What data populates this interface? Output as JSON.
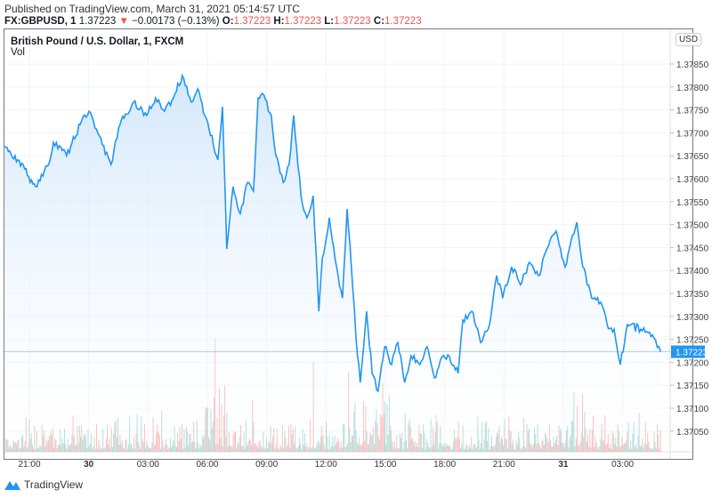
{
  "published": "Published on TradingView.com, March 31, 2021 05:14:57 UTC",
  "symbol_bar": {
    "symbol": "FX:GBPUSD, 1",
    "last": "1.37223",
    "arrow": "▼",
    "change": "−0.00173 (−0.13%)",
    "o_label": "O:",
    "o": "1.37223",
    "h_label": "H:",
    "h": "1.37223",
    "l_label": "L:",
    "l": "1.37223",
    "c_label": "C:",
    "c": "1.37223"
  },
  "footer": {
    "brand": "TradingView",
    "icon": "tradingview-logo-icon"
  },
  "chart_data": {
    "type": "area",
    "title": "British Pound / U.S. Dollar, 1, FXCM",
    "volume_label": "Vol",
    "currency": "USD",
    "last_price": 1.37223,
    "last_price_label": "1.37223",
    "ylim": [
      1.3701,
      1.3791
    ],
    "y_ticks": [
      "1.37850",
      "1.37800",
      "1.37750",
      "1.37700",
      "1.37650",
      "1.37600",
      "1.37550",
      "1.37500",
      "1.37450",
      "1.37400",
      "1.37350",
      "1.37300",
      "1.37250",
      "1.37200",
      "1.37150",
      "1.37100",
      "1.37050"
    ],
    "x_ticks": [
      {
        "label": "21:00",
        "time": "2021-03-29 21:00",
        "bold": false
      },
      {
        "label": "30",
        "time": "2021-03-30 00:00",
        "bold": true
      },
      {
        "label": "03:00",
        "time": "2021-03-30 03:00",
        "bold": false
      },
      {
        "label": "06:00",
        "time": "2021-03-30 06:00",
        "bold": false
      },
      {
        "label": "09:00",
        "time": "2021-03-30 09:00",
        "bold": false
      },
      {
        "label": "12:00",
        "time": "2021-03-30 12:00",
        "bold": false
      },
      {
        "label": "15:00",
        "time": "2021-03-30 15:00",
        "bold": false
      },
      {
        "label": "18:00",
        "time": "2021-03-30 18:00",
        "bold": false
      },
      {
        "label": "21:00",
        "time": "2021-03-30 21:00",
        "bold": false
      },
      {
        "label": "31",
        "time": "2021-03-31 00:00",
        "bold": true
      },
      {
        "label": "03:00",
        "time": "2021-03-31 03:00",
        "bold": false
      }
    ],
    "colors": {
      "line": "#2196f3",
      "area_top": "#cfe5fb",
      "up_volume": "#26a69a",
      "down_volume": "#ef5350",
      "price_label_bg": "#2196f3"
    },
    "grid": true,
    "series": [
      [
        "2021-03-29 19:44",
        1.3767
      ],
      [
        "2021-03-29 20:25",
        1.37641
      ],
      [
        "2021-03-29 21:19",
        1.37583
      ],
      [
        "2021-03-29 21:59",
        1.37631
      ],
      [
        "2021-03-29 22:13",
        1.37679
      ],
      [
        "2021-03-29 22:53",
        1.3765
      ],
      [
        "2021-03-29 23:34",
        1.37718
      ],
      [
        "2021-03-30 00:01",
        1.37747
      ],
      [
        "2021-03-30 00:28",
        1.37699
      ],
      [
        "2021-03-30 01:08",
        1.37631
      ],
      [
        "2021-03-30 01:35",
        1.37718
      ],
      [
        "2021-03-30 02:16",
        1.37767
      ],
      [
        "2021-03-30 02:56",
        1.37738
      ],
      [
        "2021-03-30 03:23",
        1.37776
      ],
      [
        "2021-03-30 03:50",
        1.37747
      ],
      [
        "2021-03-30 04:17",
        1.37776
      ],
      [
        "2021-03-30 04:44",
        1.37825
      ],
      [
        "2021-03-30 05:11",
        1.37767
      ],
      [
        "2021-03-30 05:31",
        1.37796
      ],
      [
        "2021-03-30 06:05",
        1.37709
      ],
      [
        "2021-03-30 06:32",
        1.37641
      ],
      [
        "2021-03-30 06:46",
        1.37757
      ],
      [
        "2021-03-30 06:59",
        1.37447
      ],
      [
        "2021-03-30 07:18",
        1.37583
      ],
      [
        "2021-03-30 07:40",
        1.37524
      ],
      [
        "2021-03-30 08:02",
        1.37592
      ],
      [
        "2021-03-30 08:20",
        1.37573
      ],
      [
        "2021-03-30 08:34",
        1.37776
      ],
      [
        "2021-03-30 08:47",
        1.37786
      ],
      [
        "2021-03-30 09:14",
        1.37738
      ],
      [
        "2021-03-30 09:28",
        1.3765
      ],
      [
        "2021-03-30 09:50",
        1.37592
      ],
      [
        "2021-03-30 10:08",
        1.37631
      ],
      [
        "2021-03-30 10:22",
        1.37738
      ],
      [
        "2021-03-30 10:44",
        1.37563
      ],
      [
        "2021-03-30 11:02",
        1.37515
      ],
      [
        "2021-03-30 11:21",
        1.37563
      ],
      [
        "2021-03-30 11:38",
        1.37311
      ],
      [
        "2021-03-30 11:49",
        1.37428
      ],
      [
        "2021-03-30 12:10",
        1.37515
      ],
      [
        "2021-03-30 12:32",
        1.37408
      ],
      [
        "2021-03-30 12:50",
        1.3734
      ],
      [
        "2021-03-30 13:04",
        1.37534
      ],
      [
        "2021-03-30 13:17",
        1.37408
      ],
      [
        "2021-03-30 13:31",
        1.37253
      ],
      [
        "2021-03-30 13:44",
        1.37156
      ],
      [
        "2021-03-30 14:03",
        1.37311
      ],
      [
        "2021-03-30 14:20",
        1.37176
      ],
      [
        "2021-03-30 14:38",
        1.37137
      ],
      [
        "2021-03-30 14:58",
        1.37234
      ],
      [
        "2021-03-30 15:19",
        1.37195
      ],
      [
        "2021-03-30 15:38",
        1.37243
      ],
      [
        "2021-03-30 15:59",
        1.37156
      ],
      [
        "2021-03-30 16:18",
        1.37214
      ],
      [
        "2021-03-30 16:45",
        1.37195
      ],
      [
        "2021-03-30 17:07",
        1.37234
      ],
      [
        "2021-03-30 17:29",
        1.37166
      ],
      [
        "2021-03-30 17:47",
        1.37205
      ],
      [
        "2021-03-30 18:14",
        1.37214
      ],
      [
        "2021-03-30 18:41",
        1.37176
      ],
      [
        "2021-03-30 18:55",
        1.37292
      ],
      [
        "2021-03-30 19:22",
        1.37311
      ],
      [
        "2021-03-30 19:49",
        1.37243
      ],
      [
        "2021-03-30 20:16",
        1.37282
      ],
      [
        "2021-03-30 20:38",
        1.37389
      ],
      [
        "2021-03-30 20:56",
        1.3734
      ],
      [
        "2021-03-30 21:23",
        1.37408
      ],
      [
        "2021-03-30 21:50",
        1.37369
      ],
      [
        "2021-03-30 22:17",
        1.37418
      ],
      [
        "2021-03-30 22:44",
        1.37389
      ],
      [
        "2021-03-30 23:20",
        1.37466
      ],
      [
        "2021-03-30 23:38",
        1.37486
      ],
      [
        "2021-03-31 00:05",
        1.37408
      ],
      [
        "2021-03-31 00:41",
        1.37505
      ],
      [
        "2021-03-31 00:59",
        1.37408
      ],
      [
        "2021-03-31 01:26",
        1.3734
      ],
      [
        "2021-03-31 01:53",
        1.37331
      ],
      [
        "2021-03-31 02:13",
        1.37282
      ],
      [
        "2021-03-31 02:34",
        1.37272
      ],
      [
        "2021-03-31 02:53",
        1.37195
      ],
      [
        "2021-03-31 03:14",
        1.37282
      ],
      [
        "2021-03-31 03:55",
        1.37272
      ],
      [
        "2021-03-31 04:35",
        1.37253
      ],
      [
        "2021-03-31 04:55",
        1.37223
      ]
    ]
  }
}
